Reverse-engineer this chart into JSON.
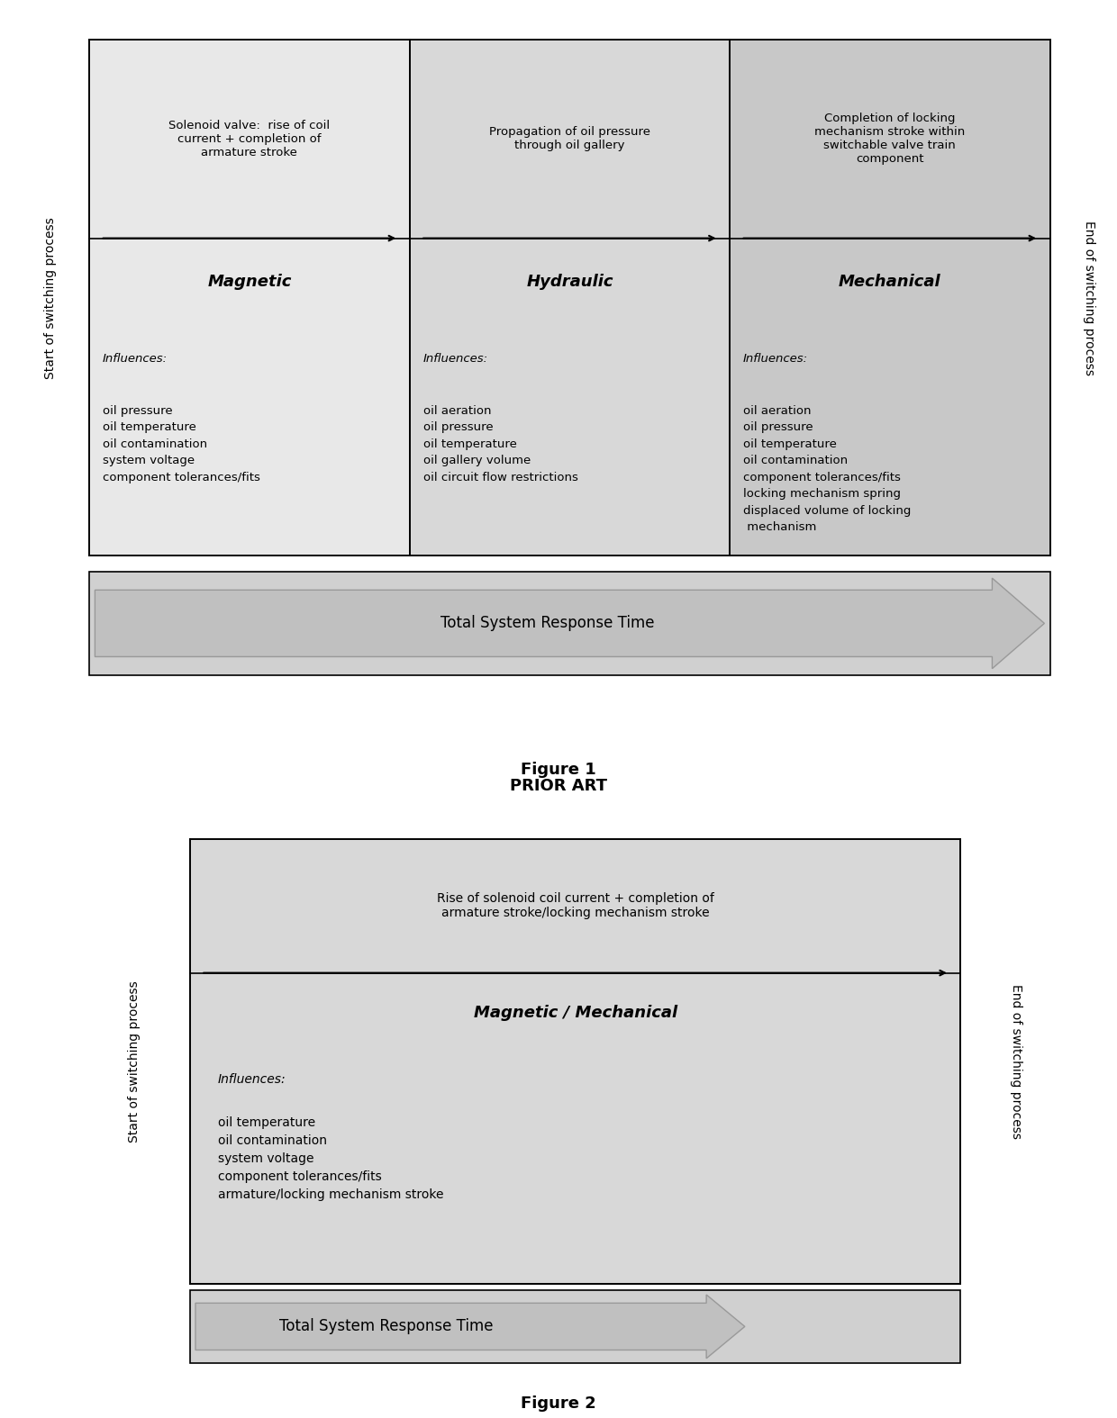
{
  "fig1": {
    "title": "Figure 1",
    "subtitle": "PRIOR ART",
    "col_colors": [
      "#e8e8e8",
      "#d8d8d8",
      "#c8c8c8"
    ],
    "col_names": [
      "Magnetic",
      "Hydraulic",
      "Mechanical"
    ],
    "top_texts": [
      "Solenoid valve:  rise of coil\ncurrent + completion of\narmature stroke",
      "Propagation of oil pressure\nthrough oil gallery",
      "Completion of locking\nmechanism stroke within\nswitchable valve train\ncomponent"
    ],
    "influences_label": "Influences:",
    "influence_lists": [
      "oil pressure\noil temperature\noil contamination\nsystem voltage\ncomponent tolerances/fits",
      "oil aeration\noil pressure\noil temperature\noil gallery volume\noil circuit flow restrictions",
      "oil aeration\noil pressure\noil temperature\noil contamination\ncomponent tolerances/fits\nlocking mechanism spring\ndisplaced volume of locking\n mechanism"
    ],
    "arrow_label": "Total System Response Time",
    "left_label": "Start of switching process",
    "right_label": "End of switching process"
  },
  "fig2": {
    "title": "Figure 2",
    "col_color": "#d8d8d8",
    "col_name": "Magnetic / Mechanical",
    "top_text": "Rise of solenoid coil current + completion of\narmature stroke/locking mechanism stroke",
    "influences_label": "Influences:",
    "influence_list": "oil temperature\noil contamination\nsystem voltage\ncomponent tolerances/fits\narmature/locking mechanism stroke",
    "arrow_label": "Total System Response Time",
    "left_label": "Start of switching process",
    "right_label": "End of switching process"
  }
}
